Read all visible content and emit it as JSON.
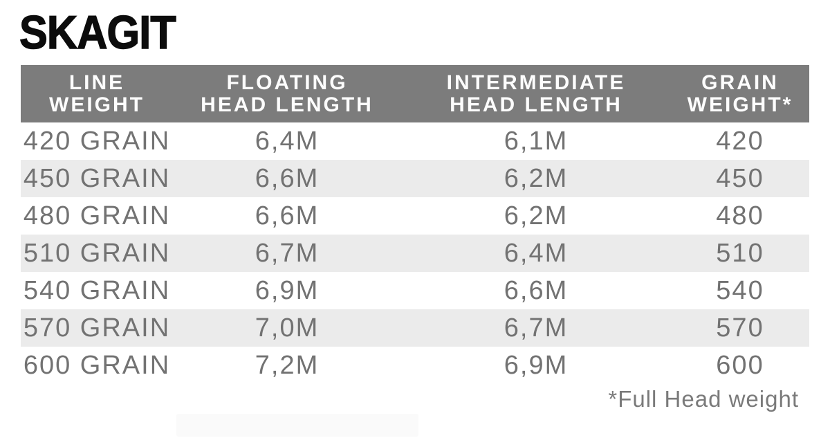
{
  "page": {
    "title": "SKAGIT",
    "footnote": "*Full Head weight"
  },
  "colors": {
    "header_bg": "#7c7c7c",
    "header_text": "#fdfdfd",
    "row_alt_bg": "#ebebeb",
    "data_text": "#727272",
    "title_text": "#0c0c0c",
    "footnote_text": "#7a7a7a"
  },
  "table": {
    "columns": [
      {
        "line1": "LINE",
        "line2": "WEIGHT"
      },
      {
        "line1": "FLOATING",
        "line2": "HEAD LENGTH"
      },
      {
        "line1": "INTERMEDIATE",
        "line2": "HEAD LENGTH"
      },
      {
        "line1": "GRAIN",
        "line2": "WEIGHT*"
      }
    ],
    "rows": [
      [
        "420 GRAIN",
        "6,4M",
        "6,1M",
        "420"
      ],
      [
        "450 GRAIN",
        "6,6M",
        "6,2M",
        "450"
      ],
      [
        "480 GRAIN",
        "6,6M",
        "6,2M",
        "480"
      ],
      [
        "510 GRAIN",
        "6,7M",
        "6,4M",
        "510"
      ],
      [
        "540 GRAIN",
        "6,9M",
        "6,6M",
        "540"
      ],
      [
        "570 GRAIN",
        "7,0M",
        "6,7M",
        "570"
      ],
      [
        "600 GRAIN",
        "7,2M",
        "6,9M",
        "600"
      ]
    ]
  },
  "chart_data": {
    "type": "table",
    "title": "SKAGIT",
    "columns": [
      "LINE WEIGHT",
      "FLOATING HEAD LENGTH",
      "INTERMEDIATE HEAD LENGTH",
      "GRAIN WEIGHT*"
    ],
    "rows": [
      [
        "420 GRAIN",
        "6,4M",
        "6,1M",
        "420"
      ],
      [
        "450 GRAIN",
        "6,6M",
        "6,2M",
        "450"
      ],
      [
        "480 GRAIN",
        "6,6M",
        "6,2M",
        "480"
      ],
      [
        "510 GRAIN",
        "6,7M",
        "6,4M",
        "510"
      ],
      [
        "540 GRAIN",
        "6,9M",
        "6,6M",
        "540"
      ],
      [
        "570 GRAIN",
        "7,0M",
        "6,7M",
        "570"
      ],
      [
        "600 GRAIN",
        "7,2M",
        "6,9M",
        "600"
      ]
    ],
    "footnote": "*Full Head weight",
    "notes": "Spey line spec table; decimal comma used for metric head lengths; alternating row stripes; grain weight column refers to full head weight."
  }
}
